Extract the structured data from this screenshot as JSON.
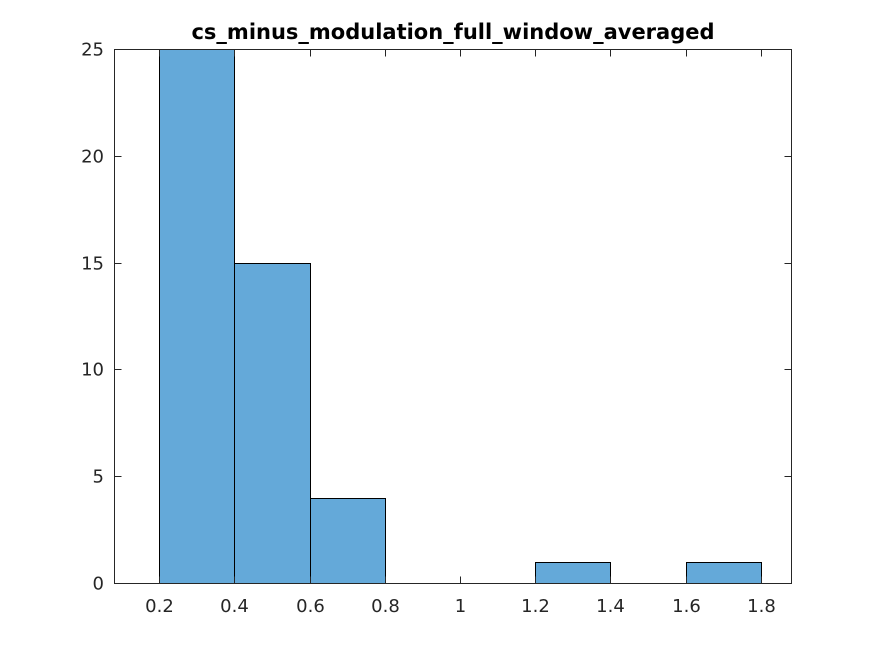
{
  "chart_data": {
    "type": "bar",
    "title": "cs_minus_modulation_full_window_averaged",
    "xlabel": "",
    "ylabel": "",
    "bin_edges": [
      0.2,
      0.4,
      0.6,
      0.8,
      1.0,
      1.2,
      1.4,
      1.6,
      1.8
    ],
    "values": [
      25,
      15,
      4,
      0,
      0,
      1,
      0,
      1
    ],
    "xlim": [
      0.08,
      1.88
    ],
    "ylim": [
      0,
      25
    ],
    "xticks": [
      0.2,
      0.4,
      0.6,
      0.8,
      1.0,
      1.2,
      1.4,
      1.6,
      1.8
    ],
    "xtick_labels": [
      "0.2",
      "0.4",
      "0.6",
      "0.8",
      "1",
      "1.2",
      "1.4",
      "1.6",
      "1.8"
    ],
    "yticks": [
      0,
      5,
      10,
      15,
      20,
      25
    ],
    "ytick_labels": [
      "0",
      "5",
      "10",
      "15",
      "20",
      "25"
    ],
    "bar_color": "#64a9d9",
    "grid": false,
    "legend": "none"
  }
}
